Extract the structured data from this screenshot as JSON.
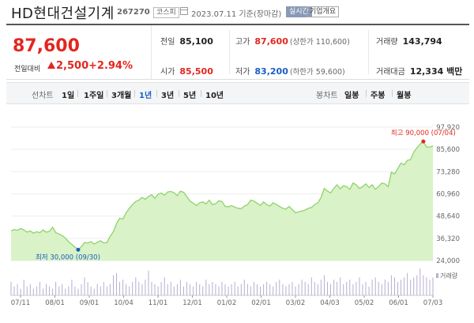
{
  "header": {
    "stock_name": "HD현대건설기계",
    "stock_code": "267270",
    "market": "코스피",
    "date": "2023.07.11 기준(장마감)",
    "realtime_label": "실시간",
    "company_info_label": "기업개요"
  },
  "summary": {
    "price": "87,600",
    "change_label": "전일대비",
    "change_value": "2,500",
    "change_percent": "+2.94%",
    "prev_close_label": "전일",
    "prev_close": "85,100",
    "open_label": "시가",
    "open": "85,500",
    "high_label": "고가",
    "high": "87,600",
    "upper_limit": "(상한가 110,600)",
    "low_label": "저가",
    "low": "83,200",
    "lower_limit": "(하한가 59,600)",
    "volume_label": "거래량",
    "volume": "143,794",
    "amount_label": "거래대금",
    "amount": "12,334 백만",
    "up_color": "#e4261f",
    "down_color": "#1a5dc6"
  },
  "period_bar": {
    "line_chart_label": "선차트",
    "line_periods": [
      "1일",
      "1주일",
      "3개월",
      "1년",
      "3년",
      "5년",
      "10년"
    ],
    "active_period": "1년",
    "candle_chart_label": "봉차트",
    "candle_periods": [
      "일봉",
      "주봉",
      "월봉"
    ]
  },
  "chart_data": {
    "type": "area",
    "y_ticks": [
      "97,920",
      "85,600",
      "73,280",
      "60,960",
      "48,640",
      "36,320",
      "24,000"
    ],
    "ylim": [
      24000,
      97920
    ],
    "x_ticks": [
      "07/11",
      "08/01",
      "09/01",
      "10/04",
      "11/01",
      "12/01",
      "01/02",
      "02/01",
      "03/02",
      "04/03",
      "05/02",
      "06/01",
      "07/03"
    ],
    "max_annotation": "최고 90,000 (07/04)",
    "min_annotation": "최저 30,000 (09/30)",
    "volume_legend": "거래량",
    "line_color": "#8fd36b",
    "fill_color": "#d9f2c7",
    "max_color": "#e4261f",
    "min_color": "#1a5dc6",
    "price_values": [
      40500,
      41200,
      40800,
      41800,
      41000,
      39800,
      40500,
      39200,
      40000,
      39500,
      41000,
      39800,
      40200,
      42500,
      39500,
      38800,
      37800,
      36500,
      34500,
      33000,
      31500,
      30000,
      31800,
      34000,
      33800,
      34500,
      33200,
      34200,
      35000,
      33800,
      34000,
      37500,
      40000,
      44500,
      47500,
      47000,
      50500,
      53000,
      55000,
      56800,
      57500,
      59000,
      58000,
      59500,
      60500,
      58500,
      60800,
      61500,
      60200,
      62000,
      62300,
      61600,
      60000,
      62500,
      61800,
      59500,
      57000,
      55800,
      54500,
      56000,
      56500,
      55500,
      57500,
      55000,
      55500,
      57200,
      56700,
      54000,
      53800,
      54500,
      53600,
      53000,
      52800,
      54200,
      55000,
      57500,
      57000,
      55800,
      54600,
      56500,
      55000,
      54200,
      56000,
      55100,
      54000,
      53000,
      52500,
      54000,
      52200,
      50500,
      51000,
      51500,
      52000,
      53000,
      53500,
      55000,
      56000,
      59000,
      64000,
      62500,
      61500,
      64000,
      66000,
      63800,
      65500,
      65000,
      63500,
      67000,
      66000,
      64000,
      65000,
      66500,
      64500,
      66000,
      63500,
      65000,
      67000,
      66500,
      65000,
      73000,
      72000,
      75000,
      78000,
      77000,
      79500,
      80000,
      84000,
      86500,
      88500,
      90000,
      87000,
      86800,
      87600
    ],
    "volume_values": [
      6,
      4,
      5,
      3,
      7,
      4,
      5,
      3,
      4,
      6,
      3,
      5,
      4,
      3,
      6,
      4,
      5,
      3,
      4,
      7,
      4,
      3,
      5,
      8,
      6,
      4,
      3,
      5,
      4,
      6,
      4,
      5,
      9,
      10,
      6,
      7,
      5,
      4,
      6,
      8,
      6,
      5,
      7,
      11,
      6,
      5,
      4,
      6,
      8,
      5,
      6,
      4,
      5,
      7,
      4,
      6,
      5,
      4,
      6,
      5,
      4,
      7,
      5,
      6,
      5,
      4,
      6,
      5,
      4,
      5,
      6,
      4,
      5,
      7,
      5,
      4,
      6,
      5,
      4,
      5,
      6,
      5,
      4,
      6,
      7,
      5,
      4,
      5,
      6,
      4,
      5,
      7,
      6,
      5,
      8,
      6,
      5,
      7,
      9,
      6,
      5,
      7,
      6,
      8,
      5,
      6,
      7,
      5,
      6,
      8,
      5,
      6,
      4,
      7,
      8,
      6,
      5,
      7,
      6,
      9,
      8,
      6,
      7,
      8,
      10,
      7,
      8,
      9,
      12,
      9,
      8,
      7,
      8
    ]
  }
}
